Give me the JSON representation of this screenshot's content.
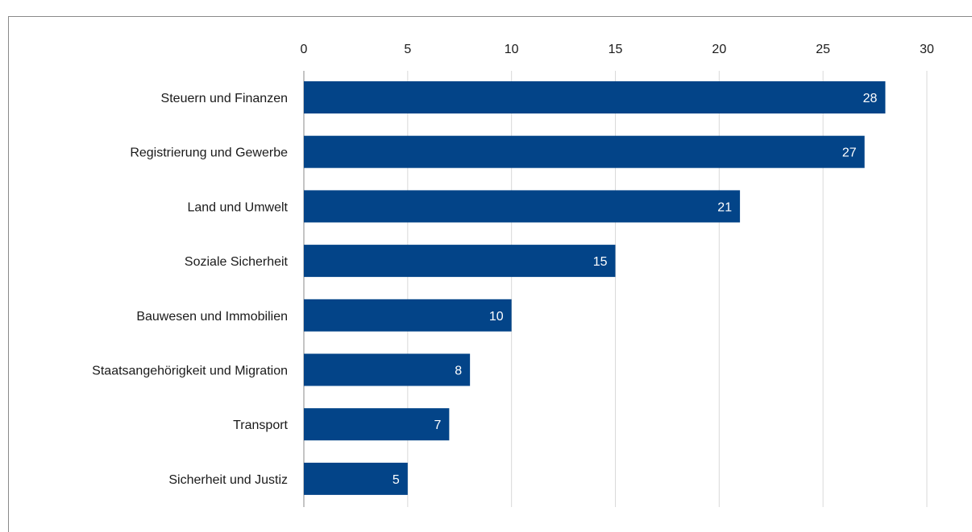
{
  "chart_data": {
    "type": "bar",
    "orientation": "horizontal",
    "categories": [
      "Steuern und Finanzen",
      "Registrierung und Gewerbe",
      "Land und Umwelt",
      "Soziale Sicherheit",
      "Bauwesen und Immobilien",
      "Staatsangehörigkeit und Migration",
      "Transport",
      "Sicherheit und Justiz"
    ],
    "values": [
      28,
      27,
      21,
      15,
      10,
      8,
      7,
      5
    ],
    "xlim": [
      0,
      30
    ],
    "x_ticks": [
      0,
      5,
      10,
      15,
      20,
      25,
      30
    ],
    "x_axis_position": "top",
    "grid": "vertical",
    "data_labels": true,
    "colors": {
      "bar": "#034488",
      "grid": "#d9d9d9",
      "axis": "#8a8a8a",
      "bar_label": "#ffffff"
    }
  }
}
